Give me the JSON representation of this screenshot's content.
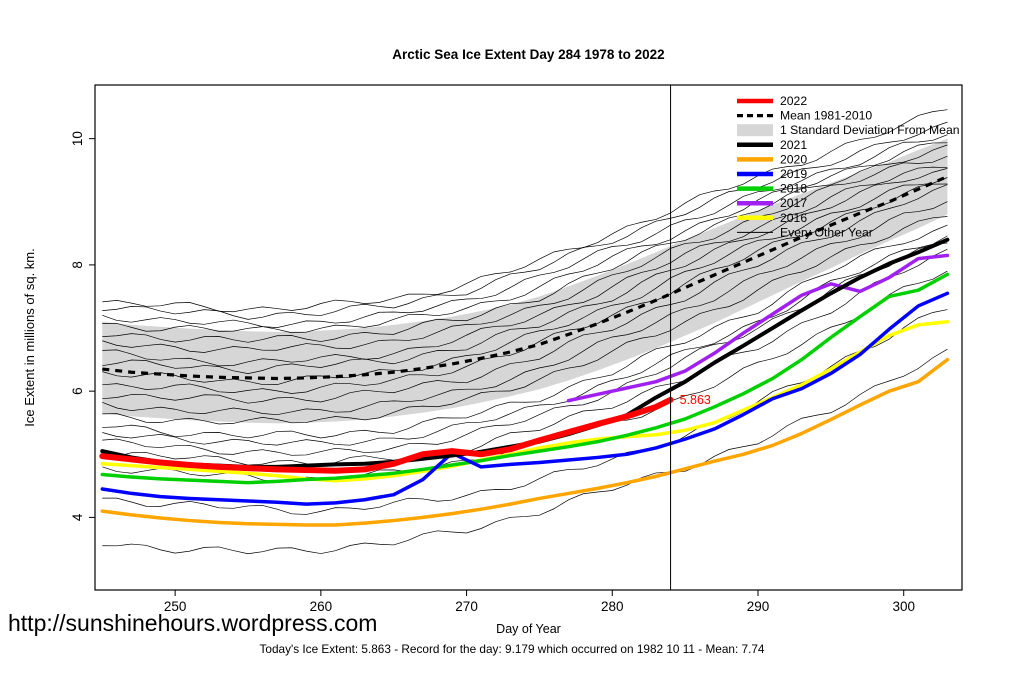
{
  "title": "Arctic Sea Ice Extent Day 284 1978 to 2022",
  "footer": {
    "site_url": "http://sunshinehours.wordpress.com",
    "xlabel": "Day of Year",
    "summary": "Today's Ice Extent: 5.863  - Record for the day: 9.179 which occurred on 1982 10 11  - Mean: 7.74"
  },
  "chart_data": {
    "type": "line",
    "title": "Arctic Sea Ice Extent Day 284 1978 to 2022",
    "xlabel": "Day of Year",
    "ylabel": "Ice Extent in millions of sq. km.",
    "xlim": [
      244.5,
      304.0
    ],
    "ylim": [
      2.85,
      10.85
    ],
    "xticks": [
      250,
      260,
      270,
      280,
      290,
      300
    ],
    "yticks": [
      4,
      6,
      8,
      10
    ],
    "grid": false,
    "legend_position": "top-right-inside",
    "vline_x": 284,
    "annotation": {
      "label": "5.863",
      "x": 284,
      "y": 5.863,
      "color": "#FF0000"
    },
    "band": {
      "name": "1 Standard Deviation From Mean",
      "color": "#D6D6D6",
      "x": [
        245,
        247,
        249,
        251,
        253,
        255,
        257,
        259,
        261,
        263,
        265,
        267,
        269,
        271,
        273,
        275,
        277,
        279,
        281,
        283,
        285,
        287,
        289,
        291,
        293,
        295,
        297,
        299,
        301,
        303
      ],
      "upper": [
        7.1,
        7.05,
        7.02,
        6.99,
        6.97,
        6.95,
        6.94,
        6.95,
        6.97,
        7.0,
        7.05,
        7.11,
        7.18,
        7.27,
        7.37,
        7.5,
        7.66,
        7.83,
        8.01,
        8.2,
        8.4,
        8.58,
        8.77,
        8.95,
        9.13,
        9.3,
        9.47,
        9.63,
        9.82,
        10.0
      ],
      "lower": [
        5.65,
        5.6,
        5.57,
        5.54,
        5.52,
        5.5,
        5.49,
        5.5,
        5.52,
        5.55,
        5.6,
        5.66,
        5.73,
        5.82,
        5.92,
        6.03,
        6.17,
        6.33,
        6.5,
        6.68,
        6.88,
        7.08,
        7.3,
        7.52,
        7.74,
        7.95,
        8.17,
        8.38,
        8.58,
        8.8
      ]
    },
    "mean": {
      "name": "Mean 1981-2010",
      "color": "#000000",
      "style": "dashed",
      "x": [
        245,
        247,
        249,
        251,
        253,
        255,
        257,
        259,
        261,
        263,
        265,
        267,
        269,
        271,
        273,
        275,
        277,
        279,
        281,
        283,
        285,
        287,
        289,
        291,
        293,
        295,
        297,
        299,
        301,
        303
      ],
      "y": [
        6.35,
        6.3,
        6.27,
        6.24,
        6.22,
        6.21,
        6.2,
        6.21,
        6.23,
        6.26,
        6.3,
        6.36,
        6.43,
        6.52,
        6.62,
        6.74,
        6.9,
        7.07,
        7.25,
        7.44,
        7.64,
        7.84,
        8.04,
        8.24,
        8.44,
        8.63,
        8.82,
        9.0,
        9.2,
        9.4
      ]
    },
    "series": [
      {
        "name": "2016",
        "color": "#FFFF00",
        "width": 3.5,
        "x": [
          245,
          247,
          249,
          251,
          253,
          255,
          257,
          259,
          261,
          263,
          265,
          267,
          269,
          271,
          273,
          275,
          277,
          279,
          281,
          283,
          285,
          287,
          289,
          291,
          293,
          295,
          297,
          299,
          301,
          303
        ],
        "y": [
          4.85,
          4.82,
          4.79,
          4.76,
          4.73,
          4.7,
          4.66,
          4.61,
          4.58,
          4.61,
          4.66,
          4.73,
          4.81,
          4.91,
          5.0,
          5.1,
          5.18,
          5.24,
          5.28,
          5.31,
          5.38,
          5.5,
          5.7,
          5.9,
          6.1,
          6.35,
          6.62,
          6.88,
          7.05,
          7.1
        ]
      },
      {
        "name": "2018",
        "color": "#00D000",
        "width": 3.5,
        "x": [
          245,
          247,
          249,
          251,
          253,
          255,
          257,
          259,
          261,
          263,
          265,
          267,
          269,
          271,
          273,
          275,
          277,
          279,
          281,
          283,
          285,
          287,
          289,
          291,
          293,
          295,
          297,
          299,
          301,
          303
        ],
        "y": [
          4.68,
          4.64,
          4.61,
          4.59,
          4.57,
          4.55,
          4.57,
          4.6,
          4.62,
          4.66,
          4.7,
          4.76,
          4.83,
          4.9,
          4.98,
          5.05,
          5.12,
          5.2,
          5.3,
          5.42,
          5.56,
          5.75,
          5.96,
          6.2,
          6.5,
          6.85,
          7.18,
          7.5,
          7.6,
          7.85
        ]
      },
      {
        "name": "2019",
        "color": "#0000FF",
        "width": 3.5,
        "x": [
          245,
          247,
          249,
          251,
          253,
          255,
          257,
          259,
          261,
          263,
          265,
          267,
          269,
          271,
          273,
          275,
          277,
          279,
          281,
          283,
          285,
          287,
          289,
          291,
          293,
          295,
          297,
          299,
          301,
          303
        ],
        "y": [
          4.45,
          4.38,
          4.33,
          4.3,
          4.28,
          4.26,
          4.24,
          4.21,
          4.23,
          4.28,
          4.36,
          4.6,
          5.02,
          4.8,
          4.84,
          4.87,
          4.91,
          4.95,
          5.0,
          5.1,
          5.24,
          5.4,
          5.63,
          5.88,
          6.04,
          6.28,
          6.58,
          6.98,
          7.35,
          7.55
        ]
      },
      {
        "name": "2020",
        "color": "#FFA500",
        "width": 3.5,
        "x": [
          245,
          247,
          249,
          251,
          253,
          255,
          257,
          259,
          261,
          263,
          265,
          267,
          269,
          271,
          273,
          275,
          277,
          279,
          281,
          283,
          285,
          287,
          289,
          291,
          293,
          295,
          297,
          299,
          301,
          303
        ],
        "y": [
          4.1,
          4.04,
          3.99,
          3.95,
          3.92,
          3.9,
          3.89,
          3.88,
          3.88,
          3.91,
          3.95,
          4.0,
          4.06,
          4.13,
          4.21,
          4.3,
          4.38,
          4.46,
          4.55,
          4.65,
          4.77,
          4.89,
          5.0,
          5.14,
          5.33,
          5.55,
          5.78,
          6.0,
          6.15,
          6.5
        ]
      },
      {
        "name": "2017",
        "color": "#A020F0",
        "width": 3.5,
        "x": [
          277,
          279,
          281,
          283,
          285,
          287,
          289,
          291,
          293,
          295,
          297,
          299,
          301,
          303
        ],
        "y": [
          5.85,
          5.95,
          6.05,
          6.15,
          6.32,
          6.6,
          6.92,
          7.22,
          7.52,
          7.7,
          7.58,
          7.8,
          8.1,
          8.15
        ]
      },
      {
        "name": "2021",
        "color": "#000000",
        "width": 4,
        "x": [
          245,
          247,
          249,
          251,
          253,
          255,
          257,
          259,
          261,
          263,
          265,
          267,
          269,
          271,
          273,
          275,
          277,
          279,
          281,
          283,
          285,
          287,
          289,
          291,
          293,
          295,
          297,
          299,
          301,
          303
        ],
        "y": [
          5.05,
          4.95,
          4.88,
          4.84,
          4.82,
          4.8,
          4.8,
          4.82,
          4.84,
          4.85,
          4.88,
          4.93,
          4.98,
          5.04,
          5.12,
          5.2,
          5.32,
          5.46,
          5.62,
          5.9,
          6.15,
          6.45,
          6.72,
          7.0,
          7.28,
          7.55,
          7.8,
          8.02,
          8.2,
          8.4
        ]
      },
      {
        "name": "2022",
        "color": "#FF0000",
        "width": 6,
        "x": [
          245,
          247,
          249,
          251,
          253,
          255,
          257,
          259,
          261,
          263,
          265,
          267,
          269,
          271,
          273,
          275,
          277,
          279,
          281,
          283,
          284
        ],
        "y": [
          4.97,
          4.92,
          4.87,
          4.83,
          4.8,
          4.78,
          4.76,
          4.75,
          4.74,
          4.76,
          4.85,
          5.0,
          5.05,
          5.0,
          5.08,
          5.22,
          5.35,
          5.48,
          5.6,
          5.75,
          5.863
        ]
      }
    ],
    "other_years": {
      "name": "Every Other Year",
      "color": "#000000",
      "width": 0.7,
      "x": [
        245,
        250,
        255,
        260,
        265,
        270,
        275,
        280,
        285,
        290,
        295,
        300,
        303
      ],
      "lines": [
        [
          3.6,
          3.5,
          3.45,
          3.5,
          3.6,
          3.8,
          4.1,
          4.45,
          4.8,
          5.2,
          5.7,
          6.3,
          6.6
        ],
        [
          4.3,
          4.2,
          4.15,
          4.1,
          4.2,
          4.35,
          4.6,
          4.9,
          5.3,
          5.8,
          6.4,
          7.0,
          7.3
        ],
        [
          4.8,
          4.7,
          4.65,
          4.6,
          4.7,
          4.9,
          5.2,
          5.5,
          5.9,
          6.4,
          7.0,
          7.6,
          7.9
        ],
        [
          5.0,
          4.95,
          4.9,
          4.85,
          4.95,
          5.1,
          5.4,
          5.8,
          6.2,
          6.7,
          7.3,
          7.9,
          8.2
        ],
        [
          5.2,
          5.1,
          5.05,
          5.0,
          5.1,
          5.3,
          5.6,
          6.0,
          6.5,
          7.0,
          7.6,
          8.1,
          8.4
        ],
        [
          5.3,
          5.25,
          5.2,
          5.15,
          5.25,
          5.45,
          5.75,
          6.15,
          6.6,
          7.1,
          7.7,
          8.2,
          8.5
        ],
        [
          5.45,
          5.35,
          5.3,
          5.3,
          5.4,
          5.6,
          5.9,
          6.3,
          6.8,
          7.3,
          7.9,
          8.4,
          8.6
        ],
        [
          5.6,
          5.55,
          5.5,
          5.55,
          5.65,
          5.85,
          6.2,
          6.6,
          7.1,
          7.6,
          8.1,
          8.6,
          8.8
        ],
        [
          5.8,
          5.7,
          5.65,
          5.7,
          5.8,
          6.0,
          6.35,
          6.8,
          7.3,
          7.8,
          8.3,
          8.8,
          9.0
        ],
        [
          5.95,
          5.9,
          5.85,
          5.9,
          6.0,
          6.2,
          6.55,
          7.0,
          7.5,
          8.0,
          8.5,
          9.0,
          9.2
        ],
        [
          6.1,
          6.05,
          6.0,
          6.05,
          6.15,
          6.4,
          6.75,
          7.2,
          7.7,
          8.2,
          8.7,
          9.1,
          9.3
        ],
        [
          6.3,
          6.2,
          6.15,
          6.2,
          6.3,
          6.55,
          6.9,
          7.35,
          7.85,
          8.35,
          8.8,
          9.2,
          9.4
        ],
        [
          6.45,
          6.4,
          6.35,
          6.4,
          6.5,
          6.7,
          7.05,
          7.5,
          8.0,
          8.5,
          8.95,
          9.35,
          9.5
        ],
        [
          6.6,
          6.5,
          6.45,
          6.5,
          6.6,
          6.85,
          7.2,
          7.65,
          8.15,
          8.6,
          9.05,
          9.45,
          9.6
        ],
        [
          6.75,
          6.7,
          6.65,
          6.7,
          6.8,
          7.0,
          7.35,
          7.8,
          8.3,
          8.75,
          9.2,
          9.6,
          9.75
        ],
        [
          6.9,
          6.85,
          6.8,
          6.85,
          6.95,
          7.15,
          7.5,
          7.95,
          8.45,
          8.9,
          9.3,
          9.7,
          9.85
        ],
        [
          7.05,
          7.0,
          6.95,
          7.0,
          7.1,
          7.3,
          7.65,
          8.1,
          8.55,
          9.0,
          9.4,
          9.8,
          9.95
        ],
        [
          7.2,
          7.1,
          7.05,
          7.1,
          7.2,
          7.45,
          7.8,
          8.25,
          8.7,
          9.1,
          9.5,
          9.9,
          10.05
        ],
        [
          7.35,
          7.25,
          7.2,
          7.25,
          7.35,
          7.6,
          7.95,
          8.4,
          8.85,
          9.25,
          9.65,
          10.0,
          10.2
        ],
        [
          7.4,
          7.35,
          7.3,
          7.35,
          7.45,
          7.7,
          8.05,
          8.5,
          8.95,
          9.4,
          9.8,
          10.2,
          10.5
        ]
      ]
    },
    "legend": [
      {
        "label": "2022",
        "color": "#FF0000",
        "type": "thick"
      },
      {
        "label": "Mean 1981-2010",
        "color": "#000000",
        "type": "dashed"
      },
      {
        "label": "1 Standard Deviation From Mean",
        "color": "#D6D6D6",
        "type": "band"
      },
      {
        "label": "2021",
        "color": "#000000",
        "type": "thick"
      },
      {
        "label": "2020",
        "color": "#FFA500",
        "type": "thick"
      },
      {
        "label": "2019",
        "color": "#0000FF",
        "type": "thick"
      },
      {
        "label": "2018",
        "color": "#00D000",
        "type": "thick"
      },
      {
        "label": "2017",
        "color": "#A020F0",
        "type": "thick"
      },
      {
        "label": "2016",
        "color": "#FFFF00",
        "type": "thick"
      },
      {
        "label": "Every Other Year",
        "color": "#000000",
        "type": "thin"
      }
    ]
  }
}
